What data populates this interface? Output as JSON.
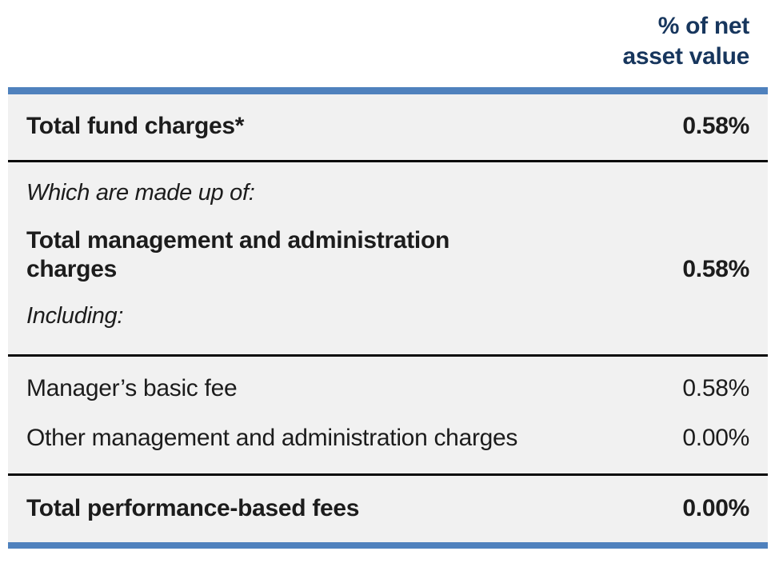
{
  "header": {
    "column_label_lines": [
      "% of net",
      "asset value"
    ]
  },
  "table": {
    "rows": {
      "total_fund_charges": {
        "label": "Total fund charges*",
        "value": "0.58%"
      },
      "made_up_of_note": "Which are made up of:",
      "total_management_admin": {
        "label": "Total management and administration charges",
        "value": "0.58%"
      },
      "including_note": "Including:",
      "managers_basic_fee": {
        "label": "Manager’s basic fee",
        "value": "0.58%"
      },
      "other_management_admin": {
        "label": "Other management and administration charges",
        "value": "0.00%"
      },
      "total_performance_fees": {
        "label": "Total performance-based fees",
        "value": "0.00%"
      }
    }
  },
  "colors": {
    "accent_blue": "#4f81bd",
    "header_text_navy": "#17365d",
    "body_background": "#f1f1f1",
    "divider_black": "#0a0a0a",
    "body_text": "#1c1c1c"
  }
}
